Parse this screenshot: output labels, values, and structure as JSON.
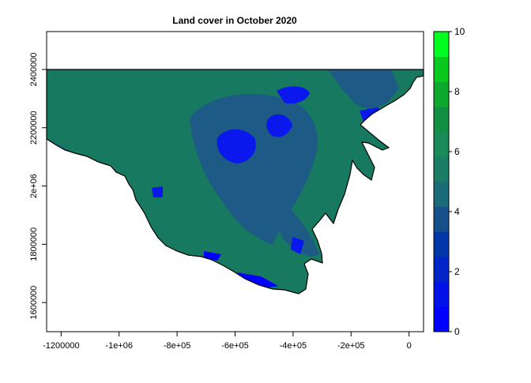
{
  "chart_data": {
    "type": "raster_map",
    "title": "Land cover in October 2020",
    "xlabel": "",
    "ylabel": "",
    "x_ticks": [
      "-1200000",
      "-1e+06",
      "-8e+05",
      "-6e+05",
      "-4e+05",
      "-2e+05",
      "0"
    ],
    "x_tick_values": [
      -1200000,
      -1000000,
      -800000,
      -600000,
      -400000,
      -200000,
      0
    ],
    "y_ticks": [
      "1600000",
      "1800000",
      "2e+06",
      "2200000",
      "2400000"
    ],
    "y_tick_values": [
      1600000,
      1800000,
      2000000,
      2200000,
      2400000
    ],
    "xlim": [
      -1250000,
      50000
    ],
    "ylim": [
      1500000,
      2530000
    ],
    "raster_top": 2400000,
    "legend": {
      "position": "right",
      "range": [
        0,
        10
      ],
      "tick_labels": [
        "0",
        "2",
        "4",
        "6",
        "8",
        "10"
      ],
      "tick_values": [
        0,
        2,
        4,
        6,
        8,
        10
      ],
      "band_colors": [
        "#0000ff",
        "#0012e8",
        "#0024c8",
        "#0036a8",
        "#174f8a",
        "#1a6a78",
        "#1b7d65",
        "#1a8a5a",
        "#138f43",
        "#0fa82e",
        "#0bc81e",
        "#00ff20"
      ]
    },
    "colors": {
      "dominant_class": "#17795f",
      "mid_class": "#1d5b86",
      "low_class": "#0a18ee",
      "water_class": "#0000ff",
      "coastline": "#000000"
    }
  }
}
